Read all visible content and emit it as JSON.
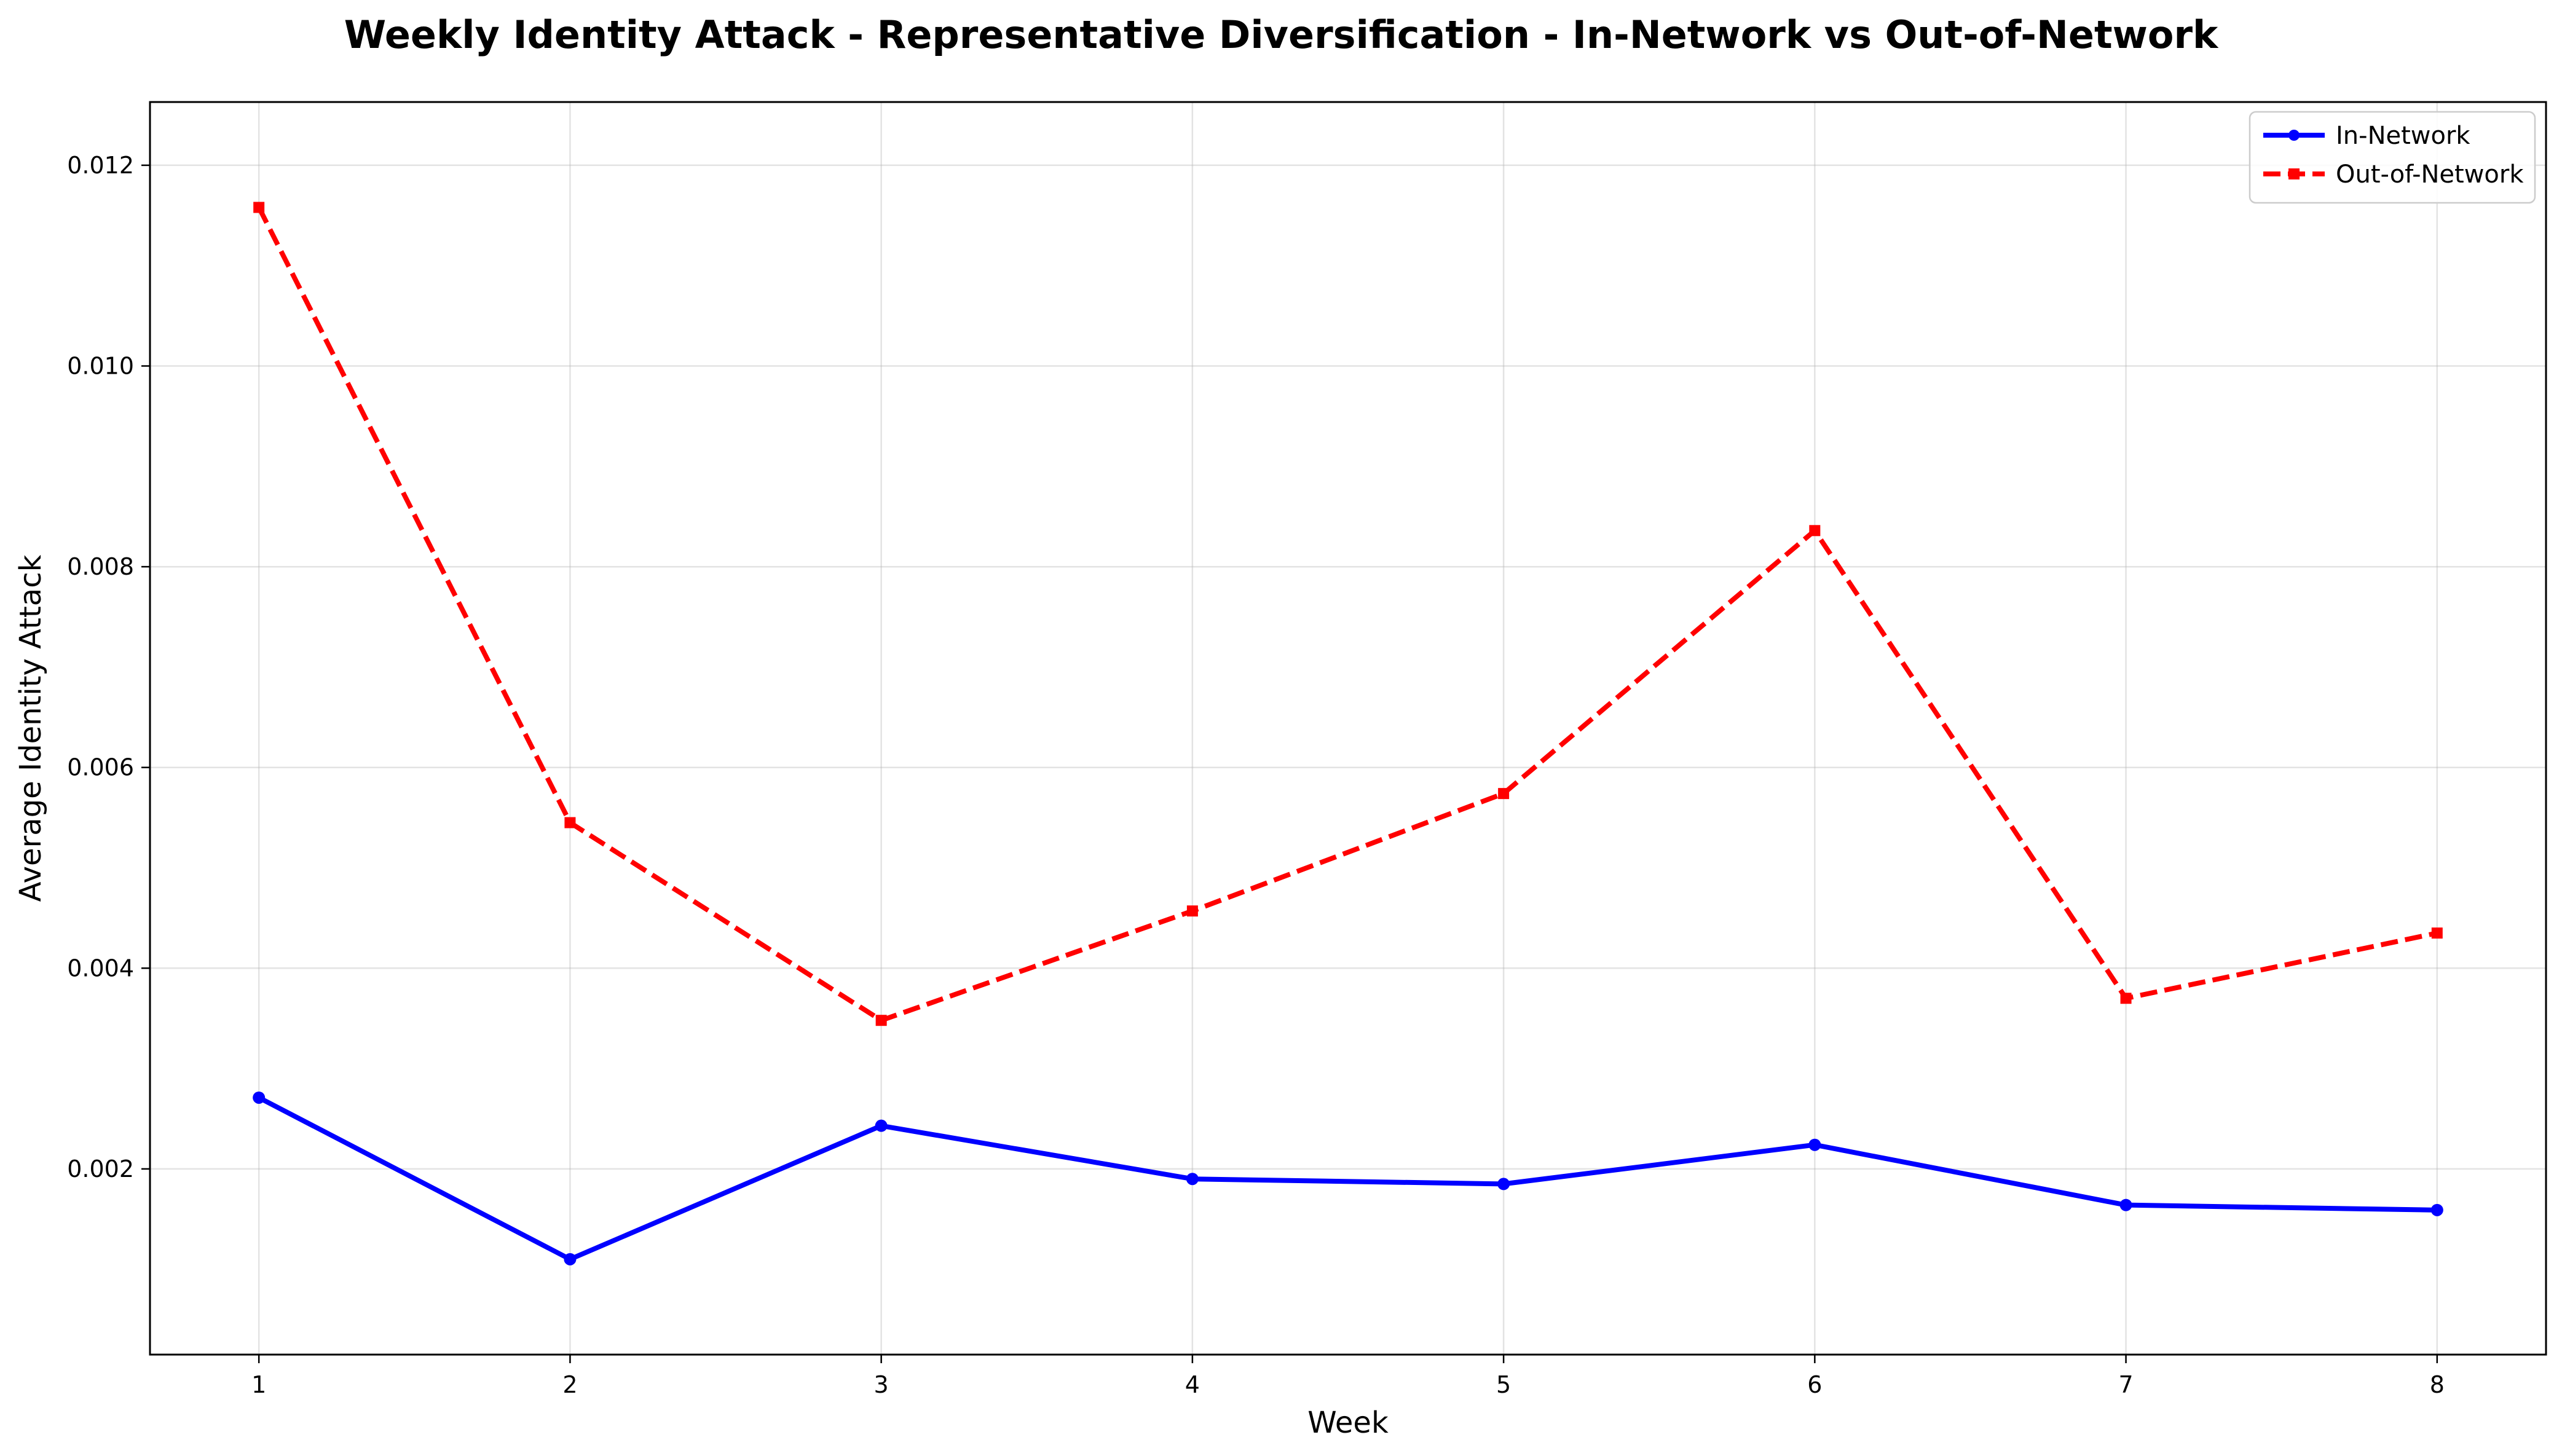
{
  "chart_data": {
    "type": "line",
    "title": "Weekly Identity Attack - Representative Diversification - In-Network vs Out-of-Network",
    "xlabel": "Week",
    "ylabel": "Average Identity Attack",
    "x": [
      1,
      2,
      3,
      4,
      5,
      6,
      7,
      8
    ],
    "x_ticks": [
      "1",
      "2",
      "3",
      "4",
      "5",
      "6",
      "7",
      "8"
    ],
    "y_ticks": [
      "0.002",
      "0.004",
      "0.006",
      "0.008",
      "0.010",
      "0.012"
    ],
    "y_tick_values": [
      0.002,
      0.004,
      0.006,
      0.008,
      0.01,
      0.012
    ],
    "xlim": [
      0.65,
      8.35
    ],
    "ylim": [
      0.00015,
      0.01263
    ],
    "grid": true,
    "legend_position": "top-right",
    "series": [
      {
        "name": "In-Network",
        "color": "#0000ff",
        "line_style": "solid",
        "marker": "circle",
        "values": [
          0.00271,
          0.0011,
          0.00243,
          0.0019,
          0.00185,
          0.00224,
          0.00164,
          0.00159
        ]
      },
      {
        "name": "Out-of-Network",
        "color": "#ff0000",
        "line_style": "dashed",
        "marker": "square",
        "values": [
          0.01158,
          0.00545,
          0.00348,
          0.00457,
          0.00574,
          0.00836,
          0.0037,
          0.00435
        ]
      }
    ]
  }
}
